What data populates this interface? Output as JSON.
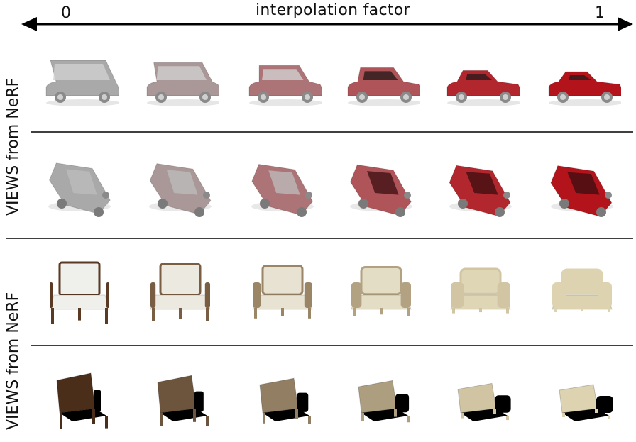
{
  "header": {
    "title": "interpolation factor",
    "start_label": "0",
    "end_label": "1"
  },
  "row_groups": [
    {
      "label": "VIEWS from NeRF",
      "object": "car"
    },
    {
      "label": "VIEWS from NeRF",
      "object": "chair"
    }
  ],
  "colors": {
    "gray_car": "#a9a9a9",
    "red_car": "#b3141c",
    "wood": "#5a3a22",
    "cushion_white": "#efefec",
    "cream": "#ddd3b0"
  }
}
